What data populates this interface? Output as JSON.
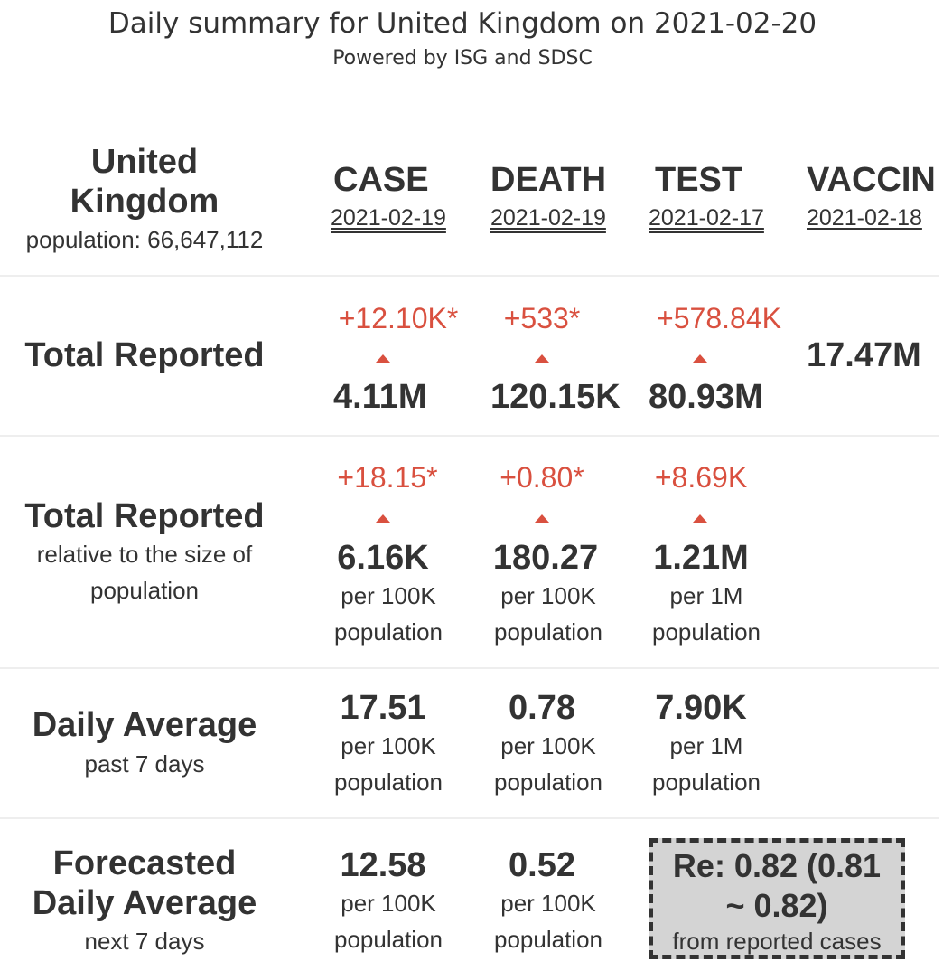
{
  "header": {
    "title": "Daily summary for United Kingdom on 2021-02-20",
    "subtitle": "Powered by ISG and SDSC"
  },
  "region": {
    "name_line1": "United",
    "name_line2": "Kingdom",
    "population": "population: 66,647,112"
  },
  "columns": [
    {
      "label": "CASE",
      "date": "2021-02-19"
    },
    {
      "label": "DEATH",
      "date": "2021-02-19"
    },
    {
      "label": "TEST",
      "date": "2021-02-17"
    },
    {
      "label": "VACCIN",
      "date": "2021-02-18"
    }
  ],
  "rows": {
    "total": {
      "label": "Total Reported",
      "case": {
        "delta": "+12.10K*",
        "value": "4.11M"
      },
      "death": {
        "delta": "+533*",
        "value": "120.15K"
      },
      "test": {
        "delta": "+578.84K",
        "value": "80.93M"
      },
      "vaccine": {
        "value": "17.47M"
      }
    },
    "relative": {
      "label": "Total Reported",
      "sub1": "relative to the size of",
      "sub2": "population",
      "case": {
        "delta": "+18.15*",
        "value": "6.16K",
        "unit1": "per 100K",
        "unit2": "population"
      },
      "death": {
        "delta": "+0.80*",
        "value": "180.27",
        "unit1": "per 100K",
        "unit2": "population"
      },
      "test": {
        "delta": "+8.69K",
        "value": "1.21M",
        "unit1": "per 1M",
        "unit2": "population"
      }
    },
    "daily": {
      "label": "Daily Average",
      "sub": "past 7 days",
      "case": {
        "value": "17.51",
        "unit1": "per 100K",
        "unit2": "population"
      },
      "death": {
        "value": "0.78",
        "unit1": "per 100K",
        "unit2": "population"
      },
      "test": {
        "value": "7.90K",
        "unit1": "per 1M",
        "unit2": "population"
      }
    },
    "forecast": {
      "label1": "Forecasted",
      "label2": "Daily Average",
      "sub": "next 7 days",
      "case": {
        "value": "12.58",
        "unit1": "per 100K",
        "unit2": "population"
      },
      "death": {
        "value": "0.52",
        "unit1": "per 100K",
        "unit2": "population"
      },
      "re_line1": "Re: 0.82 (0.81",
      "re_line2": "~ 0.82)",
      "re_sub": "from reported cases"
    }
  },
  "colors": {
    "increase": "#d9503f",
    "text": "#333333",
    "box_bg": "#d4d4d4"
  }
}
